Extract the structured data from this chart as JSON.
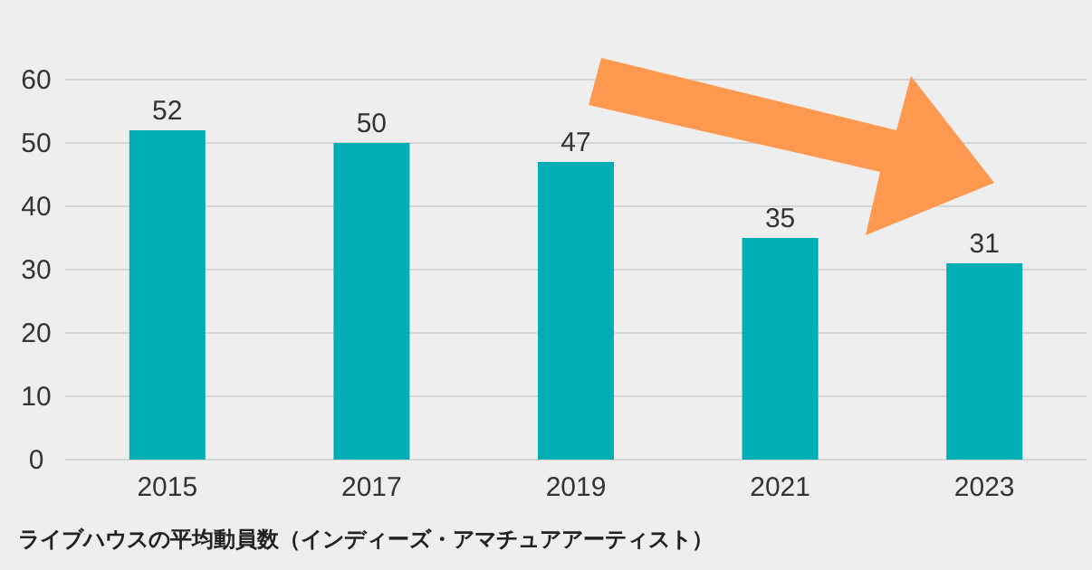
{
  "chart_data": {
    "type": "bar",
    "title": "ライブハウスの平均動員数（インディーズ・アマチュアアーティスト）",
    "categories": [
      "2015",
      "2017",
      "2019",
      "2021",
      "2023"
    ],
    "series": [
      {
        "color": "#00aeb4",
        "values": [
          52,
          50,
          47,
          35,
          31
        ]
      }
    ],
    "ylim": [
      0,
      60
    ],
    "yticks": [
      0,
      10,
      20,
      30,
      40,
      50,
      60
    ],
    "grid": "y",
    "data_labels": true
  }
}
